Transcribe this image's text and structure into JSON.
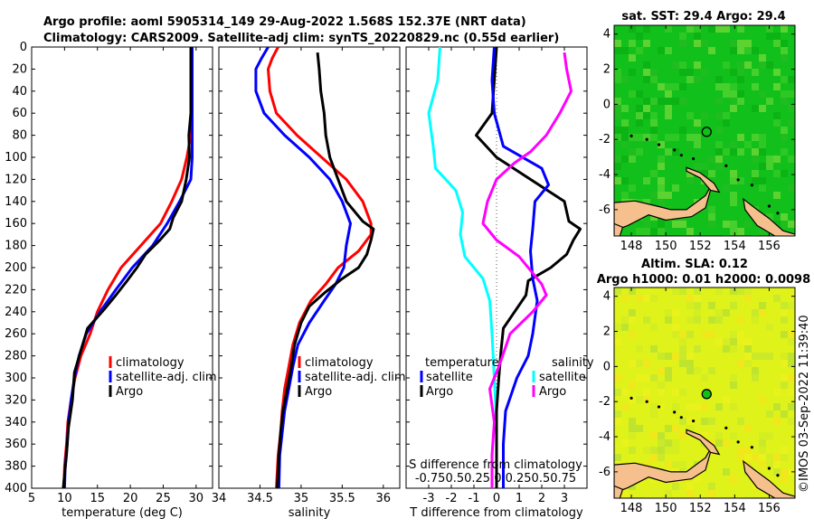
{
  "header": {
    "title_line1": "Argo profile: aoml 5905314_149 29-Aug-2022 1.568S 152.37E (NRT data)",
    "title_line2": "Climatology: CARS2009. Satellite-adj clim: synTS_20220829.nc (0.55d earlier)"
  },
  "colors": {
    "climatology": "#ff0000",
    "satellite": "#0000ff",
    "argo": "#000000",
    "sat_temp_diff": "#00ffff",
    "salinity_diff": "#ff00ff",
    "land": "#f5c08e",
    "sst_green": "#11c01a",
    "sla_yellow": "#dff21a"
  },
  "chart_data": [
    {
      "type": "line",
      "title": "",
      "xlabel": "temperature (deg C)",
      "ylabel": "",
      "xlim": [
        5,
        32.5
      ],
      "ylim": [
        400,
        0
      ],
      "xticks": [
        5,
        10,
        15,
        20,
        25,
        30
      ],
      "yticks": [
        0,
        20,
        40,
        60,
        80,
        100,
        120,
        140,
        160,
        180,
        200,
        220,
        240,
        260,
        280,
        300,
        320,
        340,
        360,
        380,
        400
      ],
      "legend": [
        "climatology",
        "satellite-adj. clim",
        "Argo"
      ],
      "series": [
        {
          "name": "climatology",
          "color": "#ff0000",
          "points": [
            [
              29.2,
              0
            ],
            [
              29.2,
              20
            ],
            [
              29.2,
              40
            ],
            [
              29.2,
              60
            ],
            [
              29.2,
              80
            ],
            [
              28.6,
              100
            ],
            [
              27.8,
              120
            ],
            [
              26.3,
              140
            ],
            [
              24.6,
              160
            ],
            [
              21.6,
              180
            ],
            [
              18.6,
              200
            ],
            [
              16.6,
              220
            ],
            [
              15.0,
              240
            ],
            [
              13.9,
              260
            ],
            [
              12.5,
              280
            ],
            [
              11.6,
              300
            ],
            [
              11.0,
              320
            ],
            [
              10.5,
              340
            ],
            [
              10.3,
              360
            ],
            [
              10.0,
              380
            ],
            [
              9.9,
              400
            ]
          ]
        },
        {
          "name": "satellite-adj. clim",
          "color": "#0000ff",
          "points": [
            [
              29.4,
              0
            ],
            [
              29.4,
              20
            ],
            [
              29.4,
              40
            ],
            [
              29.4,
              60
            ],
            [
              29.4,
              80
            ],
            [
              29.4,
              100
            ],
            [
              29.2,
              120
            ],
            [
              27.5,
              140
            ],
            [
              25.6,
              160
            ],
            [
              23.4,
              180
            ],
            [
              20.3,
              200
            ],
            [
              17.8,
              220
            ],
            [
              15.4,
              240
            ],
            [
              13.3,
              260
            ],
            [
              12.2,
              280
            ],
            [
              11.5,
              300
            ],
            [
              11.0,
              320
            ],
            [
              10.6,
              340
            ],
            [
              10.4,
              360
            ],
            [
              10.1,
              380
            ],
            [
              10.0,
              400
            ]
          ]
        },
        {
          "name": "Argo",
          "color": "#000000",
          "points": [
            [
              29.2,
              0
            ],
            [
              29.2,
              20
            ],
            [
              29.2,
              40
            ],
            [
              29.2,
              60
            ],
            [
              28.9,
              80
            ],
            [
              29.0,
              100
            ],
            [
              28.5,
              120
            ],
            [
              27.8,
              140
            ],
            [
              26.5,
              155
            ],
            [
              26.0,
              165
            ],
            [
              24.5,
              175
            ],
            [
              22.3,
              188
            ],
            [
              21.0,
              200
            ],
            [
              19.5,
              212
            ],
            [
              17.8,
              225
            ],
            [
              16.0,
              238
            ],
            [
              13.5,
              255
            ],
            [
              12.5,
              275
            ],
            [
              11.5,
              295
            ],
            [
              11.2,
              320
            ],
            [
              10.6,
              345
            ],
            [
              10.3,
              370
            ],
            [
              9.8,
              400
            ]
          ]
        }
      ]
    },
    {
      "type": "line",
      "title": "",
      "xlabel": "salinity",
      "ylabel": "",
      "xlim": [
        34,
        36.2
      ],
      "ylim": [
        400,
        0
      ],
      "xticks": [
        34,
        34.5,
        35,
        35.5,
        36
      ],
      "legend": [
        "climatology",
        "satellite-adj. clim",
        "Argo"
      ],
      "series": [
        {
          "name": "climatology",
          "color": "#ff0000",
          "points": [
            [
              34.72,
              0
            ],
            [
              34.65,
              10
            ],
            [
              34.6,
              20
            ],
            [
              34.62,
              40
            ],
            [
              34.7,
              60
            ],
            [
              34.95,
              80
            ],
            [
              35.25,
              100
            ],
            [
              35.55,
              120
            ],
            [
              35.75,
              140
            ],
            [
              35.85,
              160
            ],
            [
              35.85,
              170
            ],
            [
              35.7,
              185
            ],
            [
              35.45,
              200
            ],
            [
              35.3,
              215
            ],
            [
              35.12,
              230
            ],
            [
              34.98,
              250
            ],
            [
              34.9,
              270
            ],
            [
              34.85,
              290
            ],
            [
              34.8,
              310
            ],
            [
              34.77,
              330
            ],
            [
              34.75,
              350
            ],
            [
              34.72,
              370
            ],
            [
              34.7,
              400
            ]
          ]
        },
        {
          "name": "satellite-adj. clim",
          "color": "#0000ff",
          "points": [
            [
              34.6,
              0
            ],
            [
              34.52,
              10
            ],
            [
              34.45,
              20
            ],
            [
              34.45,
              40
            ],
            [
              34.55,
              60
            ],
            [
              34.8,
              80
            ],
            [
              35.1,
              100
            ],
            [
              35.35,
              120
            ],
            [
              35.5,
              140
            ],
            [
              35.6,
              160
            ],
            [
              35.55,
              180
            ],
            [
              35.52,
              200
            ],
            [
              35.42,
              215
            ],
            [
              35.28,
              230
            ],
            [
              35.1,
              250
            ],
            [
              34.96,
              270
            ],
            [
              34.9,
              290
            ],
            [
              34.85,
              310
            ],
            [
              34.8,
              330
            ],
            [
              34.77,
              350
            ],
            [
              34.74,
              370
            ],
            [
              34.73,
              400
            ]
          ]
        },
        {
          "name": "Argo",
          "color": "#000000",
          "points": [
            [
              35.2,
              5
            ],
            [
              35.22,
              20
            ],
            [
              35.24,
              40
            ],
            [
              35.28,
              60
            ],
            [
              35.3,
              80
            ],
            [
              35.35,
              100
            ],
            [
              35.45,
              120
            ],
            [
              35.55,
              140
            ],
            [
              35.75,
              158
            ],
            [
              35.88,
              165
            ],
            [
              35.85,
              175
            ],
            [
              35.8,
              188
            ],
            [
              35.7,
              200
            ],
            [
              35.5,
              210
            ],
            [
              35.3,
              222
            ],
            [
              35.1,
              235
            ],
            [
              35.0,
              250
            ],
            [
              34.92,
              270
            ],
            [
              34.88,
              290
            ],
            [
              34.83,
              310
            ],
            [
              34.78,
              330
            ],
            [
              34.75,
              350
            ],
            [
              34.73,
              370
            ],
            [
              34.71,
              400
            ]
          ]
        }
      ]
    },
    {
      "type": "line",
      "title": "",
      "xlabel": "T difference from climatology",
      "secondary_xlabel": "S difference from climatology",
      "secondary_ticks": "-0.750.50.25  0  0.250.50.75",
      "ylabel": "",
      "xlim": [
        -4,
        4
      ],
      "ylim": [
        400,
        0
      ],
      "xticks": [
        -3,
        -2,
        -1,
        0,
        1,
        2,
        3
      ],
      "legend": [
        "temperature",
        "satellite",
        "Argo",
        "salinity",
        "satellite",
        "Argo"
      ],
      "series": [
        {
          "name": "T satellite",
          "color": "#00ffff",
          "points": [
            [
              -2.5,
              0
            ],
            [
              -2.6,
              30
            ],
            [
              -3.0,
              60
            ],
            [
              -2.8,
              90
            ],
            [
              -2.7,
              110
            ],
            [
              -1.8,
              130
            ],
            [
              -1.5,
              150
            ],
            [
              -1.6,
              170
            ],
            [
              -1.4,
              190
            ],
            [
              -0.6,
              210
            ],
            [
              -0.3,
              230
            ],
            [
              -0.2,
              260
            ],
            [
              -0.1,
              300
            ],
            [
              0.0,
              340
            ],
            [
              0.0,
              400
            ]
          ]
        },
        {
          "name": "T Argo",
          "color": "#000000",
          "points": [
            [
              0.0,
              0
            ],
            [
              -0.2,
              60
            ],
            [
              -0.9,
              80
            ],
            [
              0.0,
              100
            ],
            [
              1.5,
              120
            ],
            [
              3.0,
              140
            ],
            [
              3.2,
              158
            ],
            [
              3.7,
              165
            ],
            [
              3.4,
              175
            ],
            [
              3.1,
              188
            ],
            [
              2.4,
              200
            ],
            [
              1.4,
              212
            ],
            [
              1.3,
              225
            ],
            [
              0.8,
              240
            ],
            [
              0.3,
              255
            ],
            [
              0.2,
              275
            ],
            [
              0.1,
              300
            ],
            [
              0.0,
              330
            ],
            [
              0.0,
              400
            ]
          ]
        },
        {
          "name": "S satellite",
          "color": "#0000ff",
          "points": [
            [
              -0.1,
              0
            ],
            [
              -0.2,
              30
            ],
            [
              -0.1,
              60
            ],
            [
              0.3,
              90
            ],
            [
              2.0,
              110
            ],
            [
              2.3,
              125
            ],
            [
              1.7,
              140
            ],
            [
              1.6,
              165
            ],
            [
              1.5,
              185
            ],
            [
              1.6,
              210
            ],
            [
              1.8,
              230
            ],
            [
              1.6,
              260
            ],
            [
              1.4,
              280
            ],
            [
              0.9,
              300
            ],
            [
              0.4,
              330
            ],
            [
              0.3,
              360
            ],
            [
              0.3,
              400
            ]
          ]
        },
        {
          "name": "S Argo",
          "color": "#ff00ff",
          "points": [
            [
              3.0,
              5
            ],
            [
              3.1,
              20
            ],
            [
              3.3,
              40
            ],
            [
              2.8,
              60
            ],
            [
              2.2,
              80
            ],
            [
              1.5,
              95
            ],
            [
              0.8,
              105
            ],
            [
              0.0,
              120
            ],
            [
              -0.4,
              140
            ],
            [
              -0.6,
              160
            ],
            [
              0.0,
              175
            ],
            [
              1.0,
              190
            ],
            [
              1.6,
              205
            ],
            [
              2.0,
              215
            ],
            [
              2.2,
              225
            ],
            [
              1.6,
              240
            ],
            [
              0.6,
              260
            ],
            [
              0.1,
              290
            ],
            [
              -0.3,
              310
            ],
            [
              -0.1,
              340
            ],
            [
              -0.2,
              370
            ],
            [
              -0.2,
              400
            ]
          ]
        }
      ]
    },
    {
      "type": "heatmap",
      "title": "sat. SST: 29.4 Argo: 29.4",
      "xticks": [
        148,
        150,
        152,
        154,
        156
      ],
      "yticks": [
        4,
        2,
        0,
        -2,
        -4,
        -6
      ],
      "xlim": [
        147,
        157.5
      ],
      "ylim": [
        -7.5,
        4.5
      ],
      "argo_position": [
        152.37,
        -1.568
      ]
    },
    {
      "type": "heatmap",
      "title": "Altim. SLA: 0.12",
      "subtitle": "Argo h1000: 0.01 h2000: 0.0098",
      "xticks": [
        148,
        150,
        152,
        154,
        156
      ],
      "yticks": [
        4,
        2,
        0,
        -2,
        -4,
        -6
      ],
      "xlim": [
        147,
        157.5
      ],
      "ylim": [
        -7.5,
        4.5
      ],
      "argo_position": [
        152.37,
        -1.568
      ]
    }
  ],
  "credit": "©IMOS 03-Sep-2022 11:39:40"
}
